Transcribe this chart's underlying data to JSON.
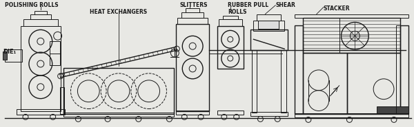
{
  "fig_width": 6.0,
  "fig_height": 1.85,
  "dpi": 100,
  "bg_color": "#e8e8e4",
  "line_color": "#1a1a1a",
  "lw": 0.7,
  "lw2": 1.0,
  "fs": 5.5,
  "labels": {
    "polishing_rolls": "POLISHING ROLLS",
    "heat_exchangers": "HEAT EXCHANGERS",
    "slitters": "SLITTERS",
    "rubber_pull_rolls": "RUBBER PULL\nROLLS",
    "shear": "SHEAR",
    "stacker": "STACKER",
    "die": "DIE₁"
  }
}
